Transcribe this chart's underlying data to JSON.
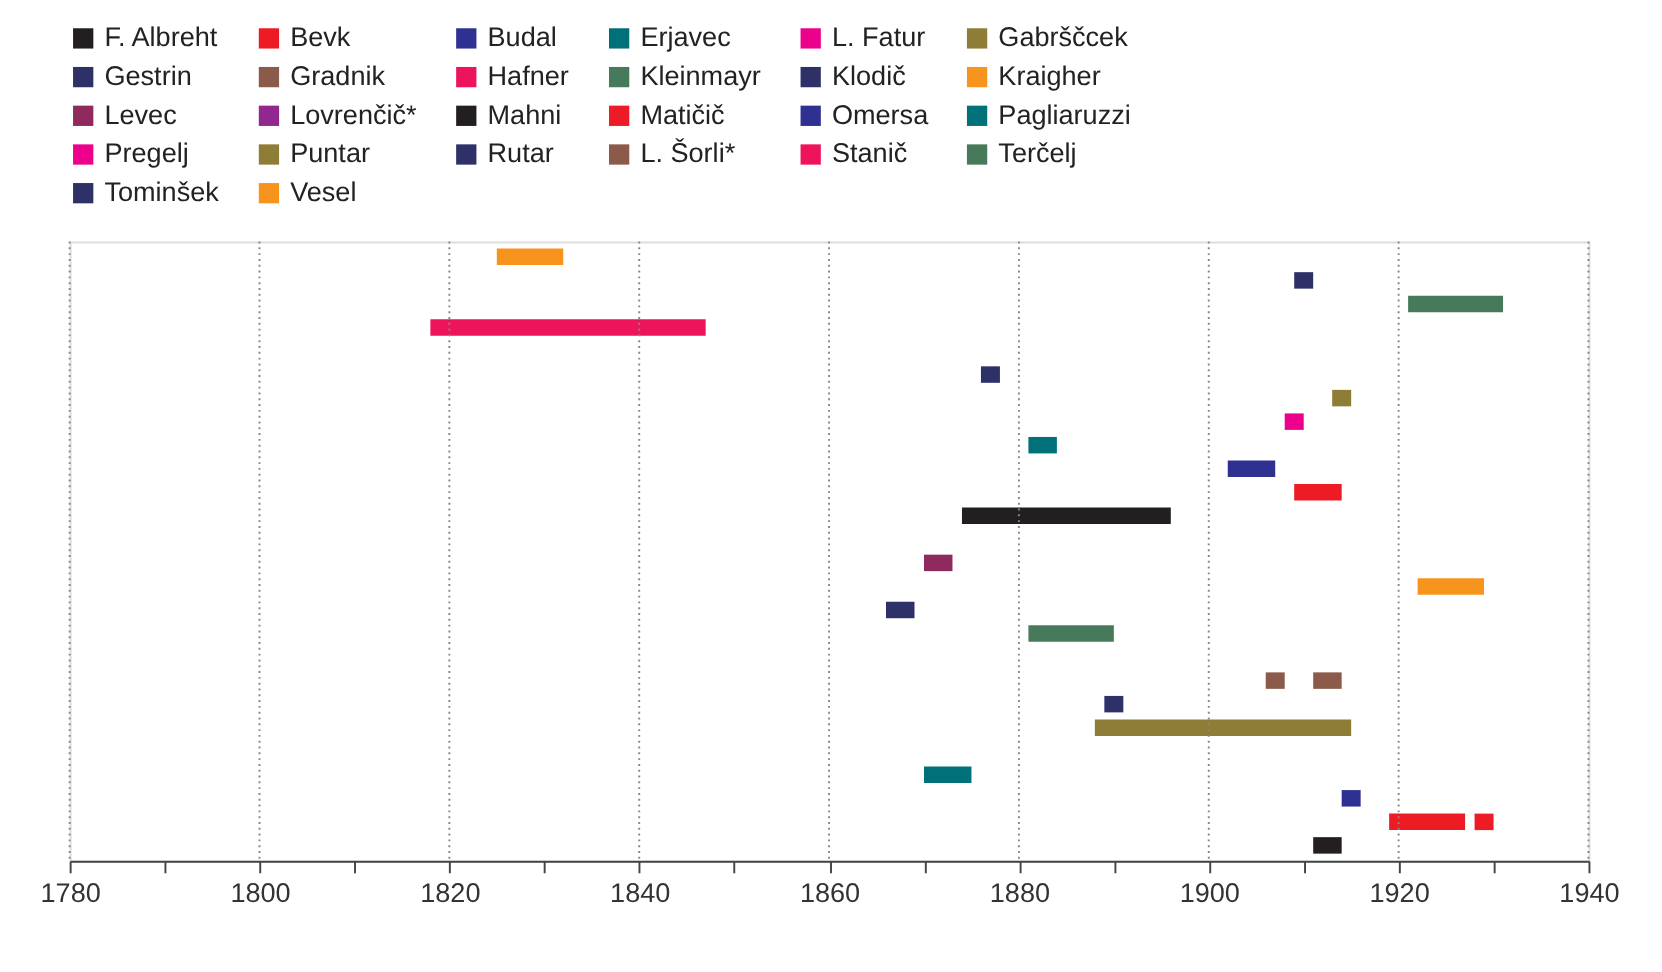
{
  "chart_data": {
    "type": "bar",
    "orientation": "horizontal",
    "categories": [
      null,
      null,
      null,
      null,
      null,
      null,
      null,
      null,
      null,
      null,
      null,
      null,
      null,
      null,
      null,
      null,
      null,
      null,
      null,
      null,
      null,
      null,
      null,
      null,
      null,
      null
    ],
    "xlim": [
      1780,
      1940
    ],
    "xticks": [
      1780,
      {
        "value": 1790,
        "label": null
      },
      1800,
      {
        "value": 1810,
        "label": null
      },
      1820,
      {
        "value": 1830,
        "label": null
      },
      1840,
      {
        "value": 1850,
        "label": null
      },
      1860,
      {
        "value": 1870,
        "label": null
      },
      1880,
      {
        "value": 1890,
        "label": null
      },
      1900,
      {
        "value": 1910,
        "label": null
      },
      1920,
      {
        "value": 1930,
        "label": null
      },
      1940
    ],
    "grid": "x",
    "legend": "top",
    "tick_labels": "x",
    "series": [
      {
        "name": "F. Albreht",
        "color": "#231f20",
        "base": [
          null,
          null,
          null,
          null,
          null,
          null,
          null,
          null,
          null,
          null,
          null,
          null,
          null,
          null,
          null,
          null,
          null,
          null,
          null,
          null,
          null,
          null,
          null,
          null,
          null,
          1911
        ],
        "values": [
          null,
          null,
          null,
          null,
          null,
          null,
          null,
          null,
          null,
          null,
          null,
          null,
          null,
          null,
          null,
          null,
          null,
          null,
          null,
          null,
          null,
          null,
          null,
          null,
          null,
          3
        ]
      },
      {
        "name": "Bevk",
        "color": "#ed1c24",
        "base": [
          null,
          null,
          null,
          null,
          null,
          null,
          null,
          null,
          null,
          null,
          null,
          null,
          null,
          null,
          null,
          null,
          null,
          null,
          null,
          null,
          null,
          null,
          null,
          null,
          1919,
          null
        ],
        "values": [
          null,
          null,
          null,
          null,
          null,
          null,
          null,
          null,
          null,
          null,
          null,
          null,
          null,
          null,
          null,
          null,
          null,
          null,
          null,
          null,
          null,
          null,
          null,
          null,
          8,
          null
        ]
      },
      {
        "color": "#ed1c24",
        "base": [
          null,
          null,
          null,
          null,
          null,
          null,
          null,
          null,
          null,
          null,
          null,
          null,
          null,
          null,
          null,
          null,
          null,
          null,
          null,
          null,
          null,
          null,
          null,
          null,
          1928,
          null
        ],
        "values": [
          null,
          null,
          null,
          null,
          null,
          null,
          null,
          null,
          null,
          null,
          null,
          null,
          null,
          null,
          null,
          null,
          null,
          null,
          null,
          null,
          null,
          null,
          null,
          null,
          2,
          null
        ]
      },
      {
        "name": "Budal",
        "color": "#2e3192",
        "base": [
          null,
          null,
          null,
          null,
          null,
          null,
          null,
          null,
          null,
          null,
          null,
          null,
          null,
          null,
          null,
          null,
          null,
          null,
          null,
          null,
          null,
          null,
          null,
          1914,
          null,
          null
        ],
        "values": [
          null,
          null,
          null,
          null,
          null,
          null,
          null,
          null,
          null,
          null,
          null,
          null,
          null,
          null,
          null,
          null,
          null,
          null,
          null,
          null,
          null,
          null,
          null,
          2,
          null,
          null
        ]
      },
      {
        "name": "Erjavec",
        "color": "#007179",
        "base": [
          null,
          null,
          null,
          null,
          null,
          null,
          null,
          null,
          null,
          null,
          null,
          null,
          null,
          null,
          null,
          null,
          null,
          null,
          null,
          null,
          null,
          null,
          1870,
          null,
          null,
          null
        ],
        "values": [
          null,
          null,
          null,
          null,
          null,
          null,
          null,
          null,
          null,
          null,
          null,
          null,
          null,
          null,
          null,
          null,
          null,
          null,
          null,
          null,
          null,
          null,
          5,
          null,
          null,
          null
        ]
      },
      {
        "name": "L. Fatur",
        "color": "#ec008c",
        "base": [
          null,
          null,
          null,
          null,
          null,
          null,
          null,
          null,
          null,
          null,
          null,
          null,
          null,
          null,
          null,
          null,
          null,
          null,
          null,
          null,
          null,
          null,
          null,
          null,
          null,
          null
        ],
        "values": [
          null,
          null,
          null,
          null,
          null,
          null,
          null,
          null,
          null,
          null,
          null,
          null,
          null,
          null,
          null,
          null,
          null,
          null,
          null,
          null,
          null,
          null,
          null,
          null,
          null,
          null
        ]
      },
      {
        "name": "Gabrščcek",
        "color": "#8e7d36",
        "base": [
          null,
          null,
          null,
          null,
          null,
          null,
          null,
          null,
          null,
          null,
          null,
          null,
          null,
          null,
          null,
          null,
          null,
          null,
          null,
          null,
          1888,
          null,
          null,
          null,
          null,
          null
        ],
        "values": [
          null,
          null,
          null,
          null,
          null,
          null,
          null,
          null,
          null,
          null,
          null,
          null,
          null,
          null,
          null,
          null,
          null,
          null,
          null,
          null,
          27,
          null,
          null,
          null,
          null,
          null
        ]
      },
      {
        "name": "Gestrin",
        "color": "#2e3168",
        "base": [
          null,
          null,
          null,
          null,
          null,
          null,
          null,
          null,
          null,
          null,
          null,
          null,
          null,
          null,
          null,
          null,
          null,
          null,
          null,
          1889,
          null,
          null,
          null,
          null,
          null,
          null
        ],
        "values": [
          null,
          null,
          null,
          null,
          null,
          null,
          null,
          null,
          null,
          null,
          null,
          null,
          null,
          null,
          null,
          null,
          null,
          null,
          null,
          2,
          null,
          null,
          null,
          null,
          null,
          null
        ]
      },
      {
        "name": "Gradnik",
        "color": "#8c5a4a",
        "base": [
          null,
          null,
          null,
          null,
          null,
          null,
          null,
          null,
          null,
          null,
          null,
          null,
          null,
          null,
          null,
          null,
          null,
          null,
          1906,
          null,
          null,
          null,
          null,
          null,
          null,
          null
        ],
        "values": [
          null,
          null,
          null,
          null,
          null,
          null,
          null,
          null,
          null,
          null,
          null,
          null,
          null,
          null,
          null,
          null,
          null,
          null,
          2,
          null,
          null,
          null,
          null,
          null,
          null,
          null
        ]
      },
      {
        "color": "#8c5a4a",
        "base": [
          null,
          null,
          null,
          null,
          null,
          null,
          null,
          null,
          null,
          null,
          null,
          null,
          null,
          null,
          null,
          null,
          null,
          null,
          1911,
          null,
          null,
          null,
          null,
          null,
          null,
          null
        ],
        "values": [
          null,
          null,
          null,
          null,
          null,
          null,
          null,
          null,
          null,
          null,
          null,
          null,
          null,
          null,
          null,
          null,
          null,
          null,
          3,
          null,
          null,
          null,
          null,
          null,
          null,
          null
        ]
      },
      {
        "name": "Hafner",
        "color": "#ed145b",
        "base": [
          null,
          null,
          null,
          null,
          null,
          null,
          null,
          null,
          null,
          null,
          null,
          null,
          null,
          null,
          null,
          null,
          null,
          null,
          null,
          null,
          null,
          null,
          null,
          null,
          null,
          null
        ],
        "values": [
          null,
          null,
          null,
          null,
          null,
          null,
          null,
          null,
          null,
          null,
          null,
          null,
          null,
          null,
          null,
          null,
          null,
          null,
          null,
          null,
          null,
          null,
          null,
          null,
          null,
          null
        ]
      },
      {
        "name": "Kleinmayr",
        "color": "#477a5b",
        "base": [
          null,
          null,
          null,
          null,
          null,
          null,
          null,
          null,
          null,
          null,
          null,
          null,
          null,
          null,
          null,
          null,
          1881,
          null,
          null,
          null,
          null,
          null,
          null,
          null,
          null,
          null
        ],
        "values": [
          null,
          null,
          null,
          null,
          null,
          null,
          null,
          null,
          null,
          null,
          null,
          null,
          null,
          null,
          null,
          null,
          9,
          null,
          null,
          null,
          null,
          null,
          null,
          null,
          null,
          null
        ]
      },
      {
        "name": "Klodič",
        "color": "#2e3168",
        "base": [
          null,
          null,
          null,
          null,
          null,
          null,
          null,
          null,
          null,
          null,
          null,
          null,
          null,
          null,
          null,
          1866,
          null,
          null,
          null,
          null,
          null,
          null,
          null,
          null,
          null,
          null
        ],
        "values": [
          null,
          null,
          null,
          null,
          null,
          null,
          null,
          null,
          null,
          null,
          null,
          null,
          null,
          null,
          null,
          3,
          null,
          null,
          null,
          null,
          null,
          null,
          null,
          null,
          null,
          null
        ]
      },
      {
        "name": "Kraigher",
        "color": "#f7941d",
        "base": [
          null,
          null,
          null,
          null,
          null,
          null,
          null,
          null,
          null,
          null,
          null,
          null,
          null,
          null,
          1922,
          null,
          null,
          null,
          null,
          null,
          null,
          null,
          null,
          null,
          null,
          null
        ],
        "values": [
          null,
          null,
          null,
          null,
          null,
          null,
          null,
          null,
          null,
          null,
          null,
          null,
          null,
          null,
          7,
          null,
          null,
          null,
          null,
          null,
          null,
          null,
          null,
          null,
          null,
          null
        ]
      },
      {
        "name": "Levec",
        "color": "#8f2a5e",
        "base": [
          null,
          null,
          null,
          null,
          null,
          null,
          null,
          null,
          null,
          null,
          null,
          null,
          null,
          1870,
          null,
          null,
          null,
          null,
          null,
          null,
          null,
          null,
          null,
          null,
          null,
          null
        ],
        "values": [
          null,
          null,
          null,
          null,
          null,
          null,
          null,
          null,
          null,
          null,
          null,
          null,
          null,
          3,
          null,
          null,
          null,
          null,
          null,
          null,
          null,
          null,
          null,
          null,
          null,
          null
        ]
      },
      {
        "name": "Lovrenčič*",
        "color": "#92278f",
        "base": [
          null,
          null,
          null,
          null,
          null,
          null,
          null,
          null,
          null,
          null,
          null,
          null,
          null,
          null,
          null,
          null,
          null,
          null,
          null,
          null,
          null,
          null,
          null,
          null,
          null,
          null
        ],
        "values": [
          null,
          null,
          null,
          null,
          null,
          null,
          null,
          null,
          null,
          null,
          null,
          null,
          null,
          null,
          null,
          null,
          null,
          null,
          null,
          null,
          null,
          null,
          null,
          null,
          null,
          null
        ]
      },
      {
        "name": "Mahni",
        "color": "#231f20",
        "base": [
          null,
          null,
          null,
          null,
          null,
          null,
          null,
          null,
          null,
          null,
          null,
          1874,
          null,
          null,
          null,
          null,
          null,
          null,
          null,
          null,
          null,
          null,
          null,
          null,
          null,
          null
        ],
        "values": [
          null,
          null,
          null,
          null,
          null,
          null,
          null,
          null,
          null,
          null,
          null,
          22,
          null,
          null,
          null,
          null,
          null,
          null,
          null,
          null,
          null,
          null,
          null,
          null,
          null,
          null
        ]
      },
      {
        "name": "Matičič",
        "color": "#ed1c24",
        "base": [
          null,
          null,
          null,
          null,
          null,
          null,
          null,
          null,
          null,
          null,
          1909,
          null,
          null,
          null,
          null,
          null,
          null,
          null,
          null,
          null,
          null,
          null,
          null,
          null,
          null,
          null
        ],
        "values": [
          null,
          null,
          null,
          null,
          null,
          null,
          null,
          null,
          null,
          null,
          5,
          null,
          null,
          null,
          null,
          null,
          null,
          null,
          null,
          null,
          null,
          null,
          null,
          null,
          null,
          null
        ]
      },
      {
        "name": "Omersa",
        "color": "#2e3192",
        "base": [
          null,
          null,
          null,
          null,
          null,
          null,
          null,
          null,
          null,
          1902,
          null,
          null,
          null,
          null,
          null,
          null,
          null,
          null,
          null,
          null,
          null,
          null,
          null,
          null,
          null,
          null
        ],
        "values": [
          null,
          null,
          null,
          null,
          null,
          null,
          null,
          null,
          null,
          5,
          null,
          null,
          null,
          null,
          null,
          null,
          null,
          null,
          null,
          null,
          null,
          null,
          null,
          null,
          null,
          null
        ]
      },
      {
        "name": "Pagliaruzzi",
        "color": "#007179",
        "base": [
          null,
          null,
          null,
          null,
          null,
          null,
          null,
          null,
          1881,
          null,
          null,
          null,
          null,
          null,
          null,
          null,
          null,
          null,
          null,
          null,
          null,
          null,
          null,
          null,
          null,
          null
        ],
        "values": [
          null,
          null,
          null,
          null,
          null,
          null,
          null,
          null,
          3,
          null,
          null,
          null,
          null,
          null,
          null,
          null,
          null,
          null,
          null,
          null,
          null,
          null,
          null,
          null,
          null,
          null
        ]
      },
      {
        "name": "Pregelj",
        "color": "#ec008c",
        "base": [
          null,
          null,
          null,
          null,
          null,
          null,
          null,
          1908,
          null,
          null,
          null,
          null,
          null,
          null,
          null,
          null,
          null,
          null,
          null,
          null,
          null,
          null,
          null,
          null,
          null,
          null
        ],
        "values": [
          null,
          null,
          null,
          null,
          null,
          null,
          null,
          2,
          null,
          null,
          null,
          null,
          null,
          null,
          null,
          null,
          null,
          null,
          null,
          null,
          null,
          null,
          null,
          null,
          null,
          null
        ]
      },
      {
        "name": "Puntar",
        "color": "#8e7d36",
        "base": [
          null,
          null,
          null,
          null,
          null,
          null,
          1913,
          null,
          null,
          null,
          null,
          null,
          null,
          null,
          null,
          null,
          null,
          null,
          null,
          null,
          null,
          null,
          null,
          null,
          null,
          null
        ],
        "values": [
          null,
          null,
          null,
          null,
          null,
          null,
          2,
          null,
          null,
          null,
          null,
          null,
          null,
          null,
          null,
          null,
          null,
          null,
          null,
          null,
          null,
          null,
          null,
          null,
          null,
          null
        ]
      },
      {
        "name": "Rutar",
        "color": "#2e3168",
        "base": [
          null,
          null,
          null,
          null,
          null,
          1876,
          null,
          null,
          null,
          null,
          null,
          null,
          null,
          null,
          null,
          null,
          null,
          null,
          null,
          null,
          null,
          null,
          null,
          null,
          null,
          null
        ],
        "values": [
          null,
          null,
          null,
          null,
          null,
          2,
          null,
          null,
          null,
          null,
          null,
          null,
          null,
          null,
          null,
          null,
          null,
          null,
          null,
          null,
          null,
          null,
          null,
          null,
          null,
          null
        ]
      },
      {
        "name": "L. Šorli*",
        "color": "#8c5a4a",
        "base": [
          null,
          null,
          null,
          null,
          null,
          null,
          null,
          null,
          null,
          null,
          null,
          null,
          null,
          null,
          null,
          null,
          null,
          null,
          null,
          null,
          null,
          null,
          null,
          null,
          null,
          null
        ],
        "values": [
          null,
          null,
          null,
          null,
          null,
          null,
          null,
          null,
          null,
          null,
          null,
          null,
          null,
          null,
          null,
          null,
          null,
          null,
          null,
          null,
          null,
          null,
          null,
          null,
          null,
          null
        ]
      },
      {
        "name": "Stanič",
        "color": "#ed145b",
        "base": [
          null,
          null,
          null,
          1818,
          null,
          null,
          null,
          null,
          null,
          null,
          null,
          null,
          null,
          null,
          null,
          null,
          null,
          null,
          null,
          null,
          null,
          null,
          null,
          null,
          null,
          null
        ],
        "values": [
          null,
          null,
          null,
          29,
          null,
          null,
          null,
          null,
          null,
          null,
          null,
          null,
          null,
          null,
          null,
          null,
          null,
          null,
          null,
          null,
          null,
          null,
          null,
          null,
          null,
          null
        ]
      },
      {
        "name": "Terčelj",
        "color": "#477a5b",
        "base": [
          null,
          null,
          1921,
          null,
          null,
          null,
          null,
          null,
          null,
          null,
          null,
          null,
          null,
          null,
          null,
          null,
          null,
          null,
          null,
          null,
          null,
          null,
          null,
          null,
          null,
          null
        ],
        "values": [
          null,
          null,
          10,
          null,
          null,
          null,
          null,
          null,
          null,
          null,
          null,
          null,
          null,
          null,
          null,
          null,
          null,
          null,
          null,
          null,
          null,
          null,
          null,
          null,
          null,
          null
        ]
      },
      {
        "name": "Tominšek",
        "color": "#2e3168",
        "base": [
          null,
          1909,
          null,
          null,
          null,
          null,
          null,
          null,
          null,
          null,
          null,
          null,
          null,
          null,
          null,
          null,
          null,
          null,
          null,
          null,
          null,
          null,
          null,
          null,
          null,
          null
        ],
        "values": [
          null,
          2,
          null,
          null,
          null,
          null,
          null,
          null,
          null,
          null,
          null,
          null,
          null,
          null,
          null,
          null,
          null,
          null,
          null,
          null,
          null,
          null,
          null,
          null,
          null,
          null
        ]
      },
      {
        "name": "Vesel",
        "color": "#f7941d",
        "base": [
          1825,
          null,
          null,
          null,
          null,
          null,
          null,
          null,
          null,
          null,
          null,
          null,
          null,
          null,
          null,
          null,
          null,
          null,
          null,
          null,
          null,
          null,
          null,
          null,
          null,
          null
        ],
        "values": [
          7,
          null,
          null,
          null,
          null,
          null,
          null,
          null,
          null,
          null,
          null,
          null,
          null,
          null,
          null,
          null,
          null,
          null,
          null,
          null,
          null,
          null,
          null,
          null,
          null,
          null
        ]
      }
    ]
  }
}
